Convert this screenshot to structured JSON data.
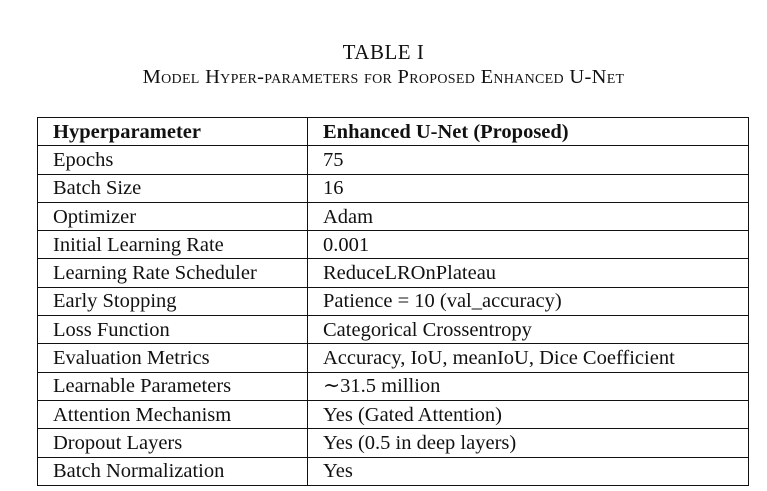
{
  "caption": {
    "label": "TABLE I",
    "title": "Model Hyper-parameters for Proposed Enhanced U-Net"
  },
  "table": {
    "headers": [
      "Hyperparameter",
      "Enhanced U-Net (Proposed)"
    ],
    "rows": [
      [
        "Epochs",
        "75"
      ],
      [
        "Batch Size",
        "16"
      ],
      [
        "Optimizer",
        "Adam"
      ],
      [
        "Initial Learning Rate",
        "0.001"
      ],
      [
        "Learning Rate Scheduler",
        "ReduceLROnPlateau"
      ],
      [
        "Early Stopping",
        "Patience = 10 (val_accuracy)"
      ],
      [
        "Loss Function",
        "Categorical Crossentropy"
      ],
      [
        "Evaluation Metrics",
        "Accuracy, IoU, meanIoU, Dice Coefficient"
      ],
      [
        "Learnable Parameters",
        "∼31.5 million"
      ],
      [
        "Attention Mechanism",
        "Yes (Gated Attention)"
      ],
      [
        "Dropout Layers",
        "Yes (0.5 in deep layers)"
      ],
      [
        "Batch Normalization",
        "Yes"
      ]
    ]
  }
}
